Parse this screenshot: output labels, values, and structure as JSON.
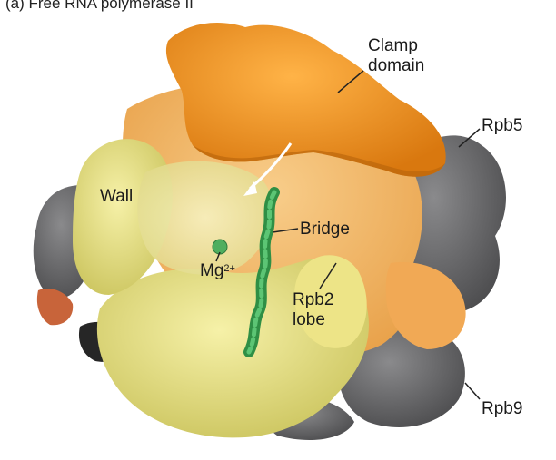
{
  "caption": "(a) Free RNA polymerase II",
  "labels": {
    "clamp_line1": "Clamp",
    "clamp_line2": "domain",
    "rpb5": "Rpb5",
    "wall": "Wall",
    "bridge": "Bridge",
    "mg": "Mg",
    "mg_charge": "2+",
    "rpb2_line1": "Rpb2",
    "rpb2_line2": "lobe",
    "rpb9": "Rpb9"
  },
  "colors": {
    "clamp": "#f0921c",
    "light_orange": "#f4b460",
    "gray": "#6b6b6d",
    "yellow": "#e9e27a",
    "pale_yellow": "#f1ec9c",
    "green_helix": "#3aa655",
    "dark_orange": "#c8643a",
    "black_region": "#262626"
  }
}
